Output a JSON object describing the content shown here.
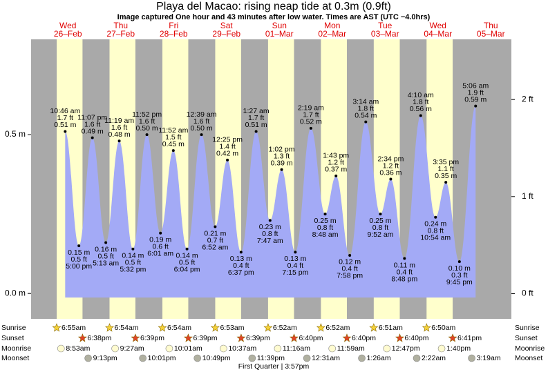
{
  "chart_data": {
    "type": "tide",
    "title": "Playa del Macao: rising  neap tide at 0.3m (0.9ft)",
    "subtitle": "Image captured One hour and 43 minutes after low water. Times are AST (UTC −4.0hrs)",
    "ylim": [
      -0.08,
      0.8
    ],
    "yticks": [
      {
        "value": 0,
        "label": "0.0 m"
      },
      {
        "value": 0.5,
        "label": "0.5 m"
      }
    ],
    "y2lim": [
      -0.26,
      2.62
    ],
    "y2ticks": [
      {
        "value": 0,
        "label": "0 ft"
      },
      {
        "value": 1,
        "label": "1 ft"
      },
      {
        "value": 2,
        "label": "2 ft"
      }
    ],
    "color": "#a3aaf6",
    "day_color": "#ffffcc",
    "night_color": "#a9a9a9",
    "row_labels": {
      "sunrise": "Sunrise",
      "sunset": "Sunset",
      "moonrise": "Moonrise",
      "moonset": "Moonset"
    },
    "moon_phase": "First Quarter | 3:57pm",
    "days": [
      {
        "dow": "Wed",
        "date": "26–Feb",
        "sunrise": "6:55am",
        "sunset": "6:38pm",
        "moonrise": "8:53am",
        "moonset": "9:13pm",
        "tides": [
          {
            "time": "10:46 am",
            "ft": "1.7 ft",
            "m": 0.51,
            "m_label": "0.51 m"
          },
          {
            "time": "5:00 pm",
            "ft": "0.5 ft",
            "m": 0.15,
            "m_label": "0.15 m"
          },
          {
            "time": "11:07 pm",
            "ft": "1.6 ft",
            "m": 0.49,
            "m_label": "0.49 m"
          }
        ]
      },
      {
        "dow": "Thu",
        "date": "27–Feb",
        "sunrise": "6:54am",
        "sunset": "6:39pm",
        "moonrise": "9:27am",
        "moonset": "10:01pm",
        "tides": [
          {
            "time": "5:13 am",
            "ft": "0.5 ft",
            "m": 0.16,
            "m_label": "0.16 m"
          },
          {
            "time": "11:19 am",
            "ft": "1.6 ft",
            "m": 0.48,
            "m_label": "0.48 m"
          },
          {
            "time": "5:32 pm",
            "ft": "0.5 ft",
            "m": 0.14,
            "m_label": "0.14 m"
          },
          {
            "time": "11:52 pm",
            "ft": "1.6 ft",
            "m": 0.5,
            "m_label": "0.50 m"
          }
        ]
      },
      {
        "dow": "Fri",
        "date": "28–Feb",
        "sunrise": "6:54am",
        "sunset": "6:39pm",
        "moonrise": "10:01am",
        "moonset": "10:49pm",
        "tides": [
          {
            "time": "6:01 am",
            "ft": "0.6 ft",
            "m": 0.19,
            "m_label": "0.19 m"
          },
          {
            "time": "11:52 am",
            "ft": "1.5 ft",
            "m": 0.45,
            "m_label": "0.45 m"
          },
          {
            "time": "6:04 pm",
            "ft": "0.5 ft",
            "m": 0.14,
            "m_label": "0.14 m"
          }
        ]
      },
      {
        "dow": "Sat",
        "date": "29–Feb",
        "sunrise": "6:53am",
        "sunset": "6:39pm",
        "moonrise": "10:37am",
        "moonset": "11:39pm",
        "tides": [
          {
            "time": "12:39 am",
            "ft": "1.6 ft",
            "m": 0.5,
            "m_label": "0.50 m"
          },
          {
            "time": "6:52 am",
            "ft": "0.7 ft",
            "m": 0.21,
            "m_label": "0.21 m"
          },
          {
            "time": "12:25 pm",
            "ft": "1.4 ft",
            "m": 0.42,
            "m_label": "0.42 m"
          },
          {
            "time": "6:37 pm",
            "ft": "0.4 ft",
            "m": 0.13,
            "m_label": "0.13 m"
          }
        ]
      },
      {
        "dow": "Sun",
        "date": "01–Mar",
        "sunrise": "6:52am",
        "sunset": "6:40pm",
        "moonrise": "11:16am",
        "moonset": null,
        "tides": [
          {
            "time": "1:27 am",
            "ft": "1.7 ft",
            "m": 0.51,
            "m_label": "0.51 m"
          },
          {
            "time": "7:47 am",
            "ft": "0.8 ft",
            "m": 0.23,
            "m_label": "0.23 m"
          },
          {
            "time": "1:02 pm",
            "ft": "1.3 ft",
            "m": 0.39,
            "m_label": "0.39 m"
          },
          {
            "time": "7:15 pm",
            "ft": "0.4 ft",
            "m": 0.13,
            "m_label": "0.13 m"
          }
        ]
      },
      {
        "dow": "Mon",
        "date": "02–Mar",
        "sunrise": "6:52am",
        "sunset": "6:40pm",
        "moonrise": "11:59am",
        "moonset": "12:31am",
        "tides": [
          {
            "time": "2:19 am",
            "ft": "1.7 ft",
            "m": 0.52,
            "m_label": "0.52 m"
          },
          {
            "time": "8:48 am",
            "ft": "0.8 ft",
            "m": 0.25,
            "m_label": "0.25 m"
          },
          {
            "time": "1:43 pm",
            "ft": "1.2 ft",
            "m": 0.37,
            "m_label": "0.37 m"
          },
          {
            "time": "7:58 pm",
            "ft": "0.4 ft",
            "m": 0.12,
            "m_label": "0.12 m"
          }
        ]
      },
      {
        "dow": "Tue",
        "date": "03–Mar",
        "sunrise": "6:51am",
        "sunset": "6:40pm",
        "moonrise": "12:47pm",
        "moonset": "1:26am",
        "tides": [
          {
            "time": "3:14 am",
            "ft": "1.8 ft",
            "m": 0.54,
            "m_label": "0.54 m"
          },
          {
            "time": "9:52 am",
            "ft": "0.8 ft",
            "m": 0.25,
            "m_label": "0.25 m"
          },
          {
            "time": "2:34 pm",
            "ft": "1.2 ft",
            "m": 0.36,
            "m_label": "0.36 m"
          },
          {
            "time": "8:48 pm",
            "ft": "0.4 ft",
            "m": 0.11,
            "m_label": "0.11 m"
          }
        ]
      },
      {
        "dow": "Wed",
        "date": "04–Mar",
        "sunrise": "6:50am",
        "sunset": "6:41pm",
        "moonrise": "1:40pm",
        "moonset": "2:22am",
        "tides": [
          {
            "time": "4:10 am",
            "ft": "1.8 ft",
            "m": 0.56,
            "m_label": "0.56 m"
          },
          {
            "time": "10:54 am",
            "ft": "0.8 ft",
            "m": 0.24,
            "m_label": "0.24 m"
          },
          {
            "time": "3:35 pm",
            "ft": "1.1 ft",
            "m": 0.35,
            "m_label": "0.35 m"
          },
          {
            "time": "9:45 pm",
            "ft": "0.3 ft",
            "m": 0.1,
            "m_label": "0.10 m"
          }
        ]
      },
      {
        "dow": "Thu",
        "date": "05–Mar",
        "sunrise": null,
        "sunset": null,
        "moonrise": null,
        "moonset": "3:19am",
        "tides": [
          {
            "time": "5:06 am",
            "ft": "1.9 ft",
            "m": 0.59,
            "m_label": "0.59 m"
          }
        ]
      }
    ]
  }
}
